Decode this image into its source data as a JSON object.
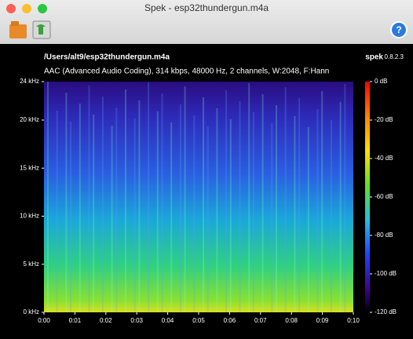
{
  "window": {
    "title": "Spek - esp32thundergun.m4a"
  },
  "header": {
    "path": "/Users/alt9/esp32thundergun.m4a",
    "info": "AAC (Advanced Audio Coding), 314 kbps, 48000 Hz, 2 channels, W:2048, F:Hann",
    "app_name": "spek",
    "version": "0.8.2.3"
  },
  "frequency_labels": [
    "24 kHz",
    "20 kHz",
    "15 kHz",
    "10 kHz",
    "5 kHz",
    "0 kHz"
  ],
  "time_labels": [
    "0:00",
    "0:01",
    "0:02",
    "0:03",
    "0:04",
    "0:05",
    "0:06",
    "0:07",
    "0:08",
    "0:09",
    "0:10"
  ],
  "level_labels": [
    "0 dB",
    "-20 dB",
    "-40 dB",
    "-60 dB",
    "-80 dB",
    "-100 dB",
    "-120 dB"
  ]
}
